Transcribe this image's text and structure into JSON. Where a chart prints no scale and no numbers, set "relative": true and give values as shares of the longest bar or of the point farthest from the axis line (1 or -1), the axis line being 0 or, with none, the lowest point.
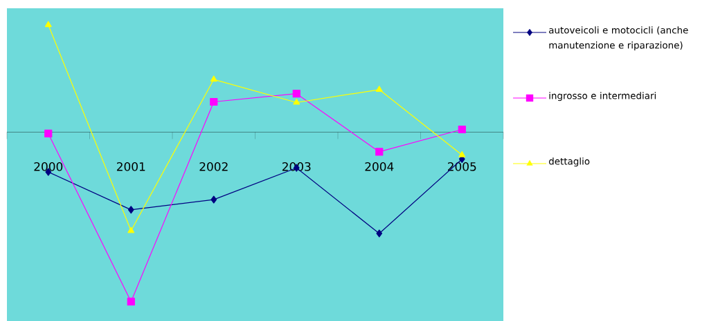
{
  "chart_data": {
    "type": "line",
    "relative": true,
    "categories": [
      "2000",
      "2001",
      "2002",
      "2003",
      "2004",
      "2005"
    ],
    "series": [
      {
        "name": "autoveicoli e motocicli (anche manutenzione e riparazione)",
        "color": "#000080",
        "marker": "diamond",
        "values": [
          -0.235,
          -0.458,
          -0.398,
          -0.211,
          -0.598,
          -0.159
        ]
      },
      {
        "name": "ingrosso e intermediari",
        "color": "#ff00ff",
        "marker": "square",
        "values": [
          -0.008,
          -1,
          0.179,
          0.227,
          -0.116,
          0.016
        ]
      },
      {
        "name": "dettaglio",
        "color": "#ffff00",
        "marker": "triangle",
        "values": [
          0.633,
          -0.582,
          0.311,
          0.175,
          0.251,
          -0.135
        ]
      }
    ],
    "legend": "right",
    "line_style": "solid"
  }
}
